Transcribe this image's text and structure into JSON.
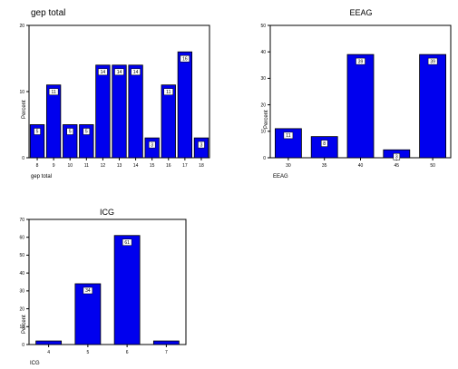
{
  "chart_data": [
    {
      "type": "bar",
      "title": "gep total",
      "xlabel": "gep total",
      "ylabel": "Percent",
      "categories": [
        "8",
        "9",
        "10",
        "11",
        "12",
        "13",
        "14",
        "15",
        "16",
        "17",
        "18"
      ],
      "values": [
        5,
        11,
        5,
        5,
        14,
        14,
        14,
        3,
        11,
        16,
        3
      ],
      "data_labels": [
        "5",
        "11",
        "5",
        "5",
        "14",
        "14",
        "14",
        "3",
        "11",
        "16",
        "3"
      ],
      "ylim": [
        0,
        20
      ],
      "yticks": [
        "0",
        "10",
        "20"
      ],
      "grid": false,
      "bar_color": "#0000ee"
    },
    {
      "type": "bar",
      "title": "EEAG",
      "xlabel": "EEAG",
      "ylabel": "Percent",
      "categories": [
        "30",
        "35",
        "40",
        "45",
        "50"
      ],
      "values": [
        11,
        8,
        39,
        3,
        39
      ],
      "data_labels": [
        "11",
        "8",
        "39",
        "3",
        "39"
      ],
      "ylim": [
        0,
        50
      ],
      "yticks": [
        "0",
        "10",
        "20",
        "30",
        "40",
        "50"
      ],
      "grid": false,
      "bar_color": "#0000ee"
    },
    {
      "type": "bar",
      "title": "ICG",
      "xlabel": "ICG",
      "ylabel": "Percent",
      "categories": [
        "4",
        "5",
        "6",
        "7"
      ],
      "values": [
        2,
        34,
        61,
        2
      ],
      "data_labels": [
        "",
        "34",
        "61",
        ""
      ],
      "ylim": [
        0,
        70
      ],
      "yticks": [
        "0",
        "10",
        "20",
        "30",
        "40",
        "50",
        "60",
        "70"
      ],
      "grid": false,
      "bar_color": "#0000ee"
    }
  ]
}
